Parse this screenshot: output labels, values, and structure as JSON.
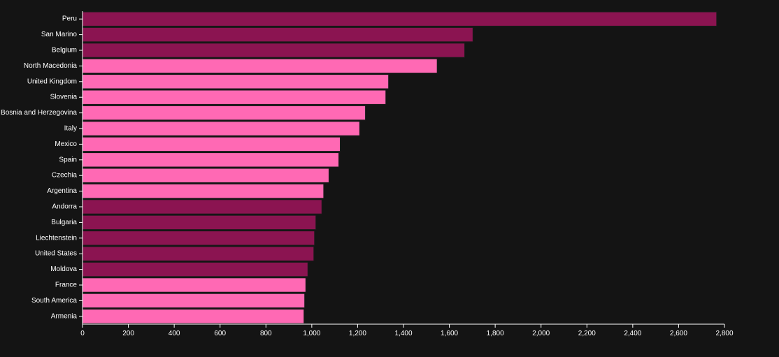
{
  "chart_data": {
    "type": "bar",
    "orientation": "horizontal",
    "categories": [
      "Peru",
      "San Marino",
      "Belgium",
      "North Macedonia",
      "United Kingdom",
      "Slovenia",
      "Bosnia and Herzegovina",
      "Italy",
      "Mexico",
      "Spain",
      "Czechia",
      "Argentina",
      "Andorra",
      "Bulgaria",
      "Liechtenstein",
      "United States",
      "Moldova",
      "France",
      "South America",
      "Armenia"
    ],
    "values": [
      2766,
      1703,
      1667,
      1547,
      1335,
      1323,
      1234,
      1209,
      1124,
      1118,
      1075,
      1052,
      1044,
      1018,
      1012,
      1009,
      983,
      974,
      969,
      966
    ],
    "bar_colors": [
      "#8b1451",
      "#8b1451",
      "#8b1451",
      "#ff69b4",
      "#ff69b4",
      "#ff69b4",
      "#ff69b4",
      "#ff69b4",
      "#ff69b4",
      "#ff69b4",
      "#ff69b4",
      "#ff69b4",
      "#8b1451",
      "#8b1451",
      "#8b1451",
      "#8b1451",
      "#8b1451",
      "#ff69b4",
      "#ff69b4",
      "#ff69b4"
    ],
    "x_ticks": [
      0,
      200,
      400,
      600,
      800,
      1000,
      1200,
      1400,
      1600,
      1800,
      2000,
      2200,
      2400,
      2600,
      2800
    ],
    "x_tick_labels": [
      "0",
      "200",
      "400",
      "600",
      "800",
      "1,000",
      "1,200",
      "1,400",
      "1,600",
      "1,800",
      "2,000",
      "2,200",
      "2,400",
      "2,600",
      "2,800"
    ],
    "xlim": [
      0,
      2800
    ],
    "title": "",
    "xlabel": "",
    "ylabel": "",
    "grid": false,
    "legend": "none",
    "colors": {
      "background": "#141414",
      "dark": "#8b1451",
      "light": "#ff69b4",
      "text": "#ffffff"
    }
  }
}
